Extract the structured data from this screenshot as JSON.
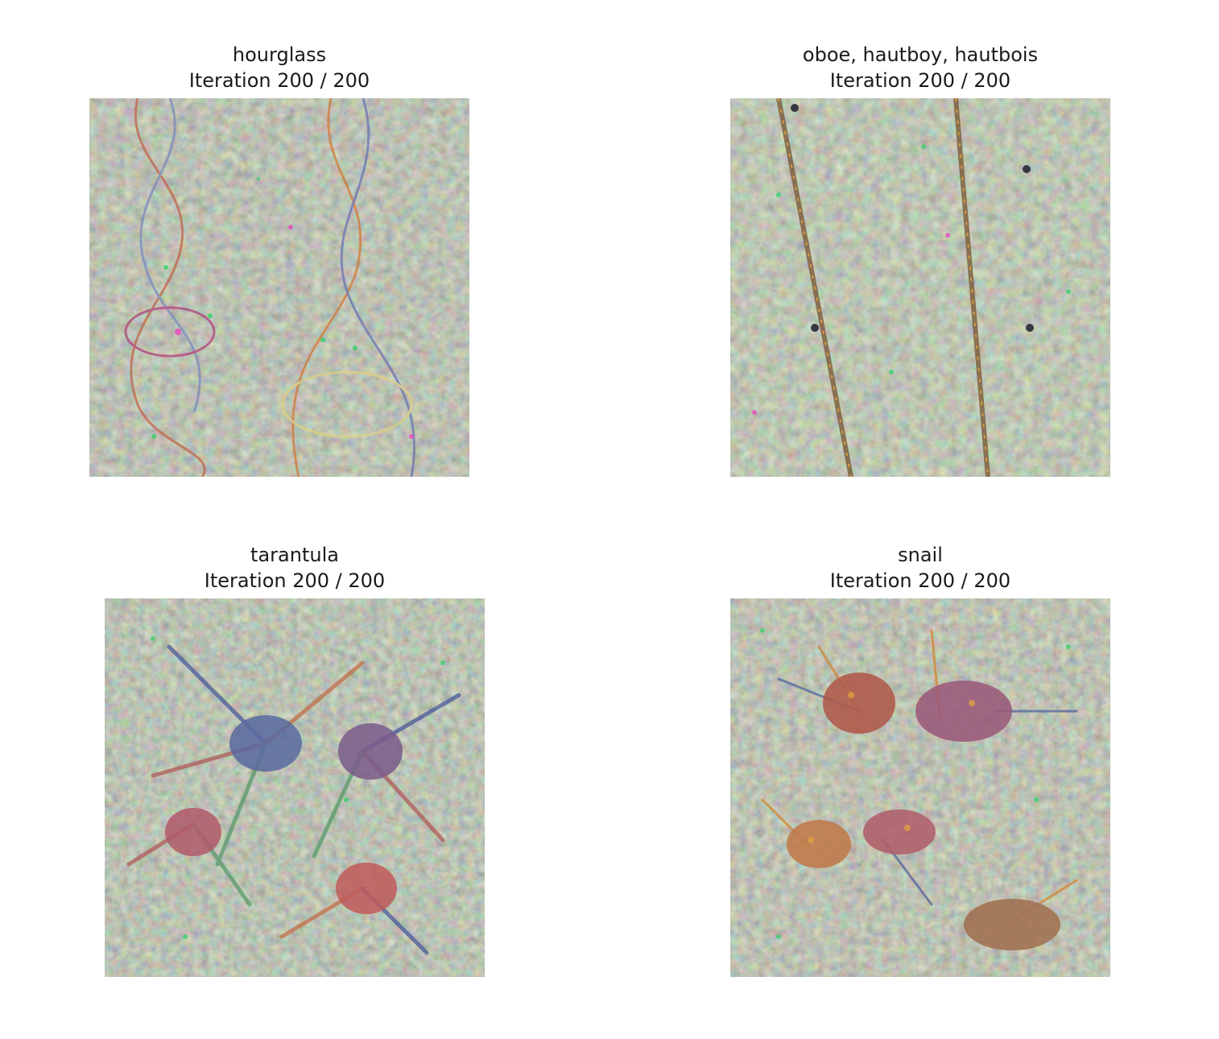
{
  "panels": [
    {
      "id": "hourglass",
      "title_line1": "hourglass",
      "title_line2": "Iteration 200 / 200",
      "image_description": "deep-dream class visualization of hourglass shapes",
      "palette": [
        "#8f9a78",
        "#a58a86",
        "#6fa35c",
        "#b0727c",
        "#7b86a8"
      ]
    },
    {
      "id": "oboe",
      "title_line1": "oboe, hautboy, hautbois",
      "title_line2": "Iteration 200 / 200",
      "image_description": "deep-dream class visualization of oboe shapes",
      "palette": [
        "#8f9a78",
        "#a58a86",
        "#6fa35c",
        "#b0727c",
        "#7b86a8"
      ]
    },
    {
      "id": "tarantula",
      "title_line1": "tarantula",
      "title_line2": "Iteration 200 / 200",
      "image_description": "deep-dream class visualization of tarantula shapes",
      "palette": [
        "#8a9576",
        "#a08686",
        "#67a05a",
        "#b36a74",
        "#6f7fa8"
      ]
    },
    {
      "id": "snail",
      "title_line1": "snail",
      "title_line2": "Iteration 200 / 200",
      "image_description": "deep-dream class visualization of snail shapes",
      "palette": [
        "#8c9776",
        "#a78886",
        "#6ca15c",
        "#b5707a",
        "#7884a8"
      ]
    }
  ]
}
